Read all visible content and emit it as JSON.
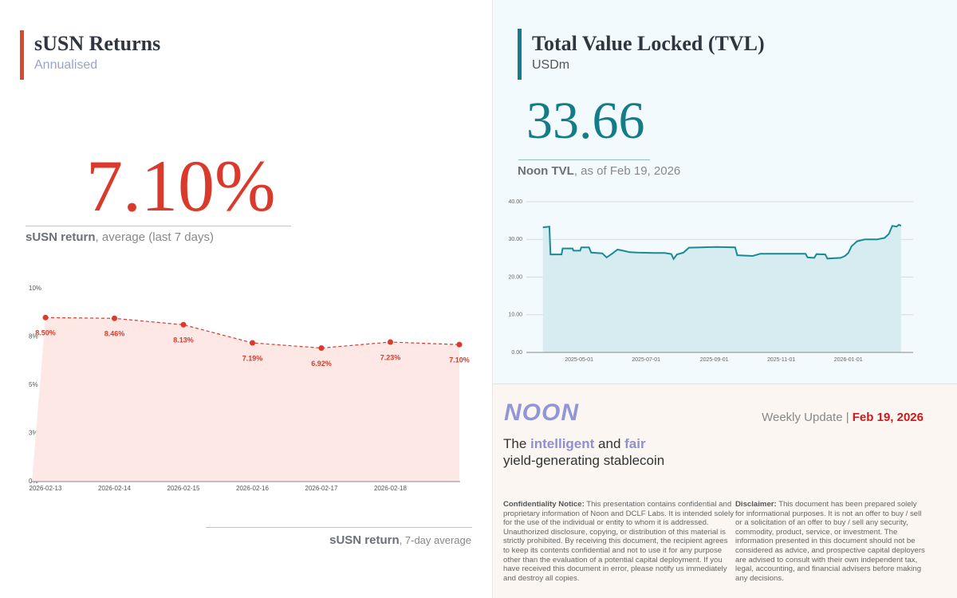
{
  "returns_panel": {
    "title": "sUSN Returns",
    "subtitle": "Annualised",
    "headline": "7.10%",
    "caption_bold": "sUSN return",
    "caption_rest": ", average (last 7 days)",
    "footer_bold": "sUSN return",
    "footer_rest": ", 7-day average"
  },
  "tvl_panel": {
    "title": "Total Value Locked (TVL)",
    "subtitle": "USDm",
    "headline": "33.66",
    "caption_bold": "Noon TVL",
    "caption_rest": ", as of Feb 19, 2026"
  },
  "footer": {
    "logo": "NOON",
    "update_label": "Weekly Update | ",
    "update_date": "Feb 19, 2026",
    "tagline": {
      "part1": "The ",
      "intelligent": "intelligent",
      "part2": " and ",
      "fair": "fair",
      "part3": "yield-generating stablecoin"
    },
    "confidentiality": {
      "label": "Confidentiality Notice:",
      "text": " This presentation contains confidential and proprietary information of Noon and DCLF Labs. It is intended solely for the use of the individual or entity to whom it is addressed. Unauthorized disclosure, copying, or distribution of this material is strictly prohibited. By receiving this document, the recipient agrees to keep its contents confidential and not to use it for any purpose other than the evaluation of a potential capital deployment. If you have received this document in error, please notify us immediately and destroy all copies."
    },
    "disclaimer": {
      "label": "Disclaimer:",
      "text": " This document has been prepared solely for informational purposes. It is not an offer to buy / sell or a solicitation of an offer to buy / sell any security, commodity, product, service, or investment. The information presented in this document should not be considered as advice, and prospective capital deployers are advised to consult with their own independent tax, legal, accounting, and financial advisers before making any decisions."
    }
  },
  "chart_data": [
    {
      "type": "area",
      "dashed": true,
      "markers": true,
      "color": "#d93a2b",
      "fill": "#fde8e5",
      "categories": [
        "2026-02-13",
        "2026-02-14",
        "2026-02-15",
        "2026-02-16",
        "2026-02-17",
        "2026-02-18",
        null
      ],
      "values": [
        8.5,
        8.46,
        8.13,
        7.19,
        6.92,
        7.23,
        7.1
      ],
      "value_labels": [
        "8.50%",
        "8.46%",
        "8.13%",
        "7.19%",
        "6.92%",
        "7.23%",
        "7.10%"
      ],
      "ylim": [
        0,
        10
      ],
      "yticks": [
        {
          "value": 0,
          "label": "0%"
        },
        {
          "value": 2.5,
          "label": "3%"
        },
        {
          "value": 5,
          "label": "5%"
        },
        {
          "value": 7.5,
          "label": "8%"
        },
        {
          "value": 10,
          "label": "10%"
        }
      ],
      "grid": false
    },
    {
      "type": "area",
      "dashed": false,
      "markers": false,
      "color": "#1a8a94",
      "fill": "#d6ecf0",
      "x": [
        "2025-03-29",
        "2025-04-04",
        "2025-04-05",
        "2025-04-15",
        "2025-04-16",
        "2025-04-25",
        "2025-04-26",
        "2025-05-02",
        "2025-05-03",
        "2025-05-10",
        "2025-05-12",
        "2025-05-22",
        "2025-05-26",
        "2025-05-31",
        "2025-06-05",
        "2025-06-10",
        "2025-06-16",
        "2025-06-23",
        "2025-07-08",
        "2025-07-18",
        "2025-07-24",
        "2025-07-26",
        "2025-07-29",
        "2025-08-04",
        "2025-08-09",
        "2025-08-20",
        "2025-09-03",
        "2025-09-20",
        "2025-09-22",
        "2025-10-06",
        "2025-10-13",
        "2025-11-04",
        "2025-11-23",
        "2025-11-25",
        "2025-12-01",
        "2025-12-03",
        "2025-12-11",
        "2025-12-13",
        "2025-12-25",
        "2025-12-29",
        "2026-01-01",
        "2026-01-04",
        "2026-01-09",
        "2026-01-16",
        "2026-01-27",
        "2026-02-03",
        "2026-02-07",
        "2026-02-10",
        "2026-02-14",
        "2026-02-16",
        "2026-02-18"
      ],
      "values": [
        33.2,
        33.4,
        26.0,
        26.0,
        27.6,
        27.6,
        27.0,
        27.0,
        27.9,
        27.9,
        26.5,
        26.3,
        25.2,
        26.2,
        27.3,
        27.0,
        26.6,
        26.5,
        26.4,
        26.4,
        26.1,
        24.8,
        26.0,
        26.5,
        27.8,
        27.9,
        28.0,
        27.9,
        25.8,
        25.6,
        26.2,
        26.2,
        26.2,
        25.2,
        25.1,
        26.1,
        26.0,
        24.9,
        25.1,
        25.6,
        26.4,
        28.2,
        29.5,
        30.0,
        30.0,
        30.4,
        31.5,
        33.6,
        33.4,
        33.9,
        33.6
      ],
      "xlim": [
        "2025-03-14",
        "2026-03-01"
      ],
      "xticks": [
        "2025-05-01",
        "2025-07-01",
        "2025-09-01",
        "2025-11-01",
        "2026-01-01"
      ],
      "ylim": [
        0,
        40
      ],
      "yticks": [
        {
          "value": 0,
          "label": "0.00"
        },
        {
          "value": 10,
          "label": "10.00"
        },
        {
          "value": 20,
          "label": "20.00"
        },
        {
          "value": 30,
          "label": "30.00"
        },
        {
          "value": 40,
          "label": "40.00"
        }
      ],
      "grid": true
    }
  ]
}
